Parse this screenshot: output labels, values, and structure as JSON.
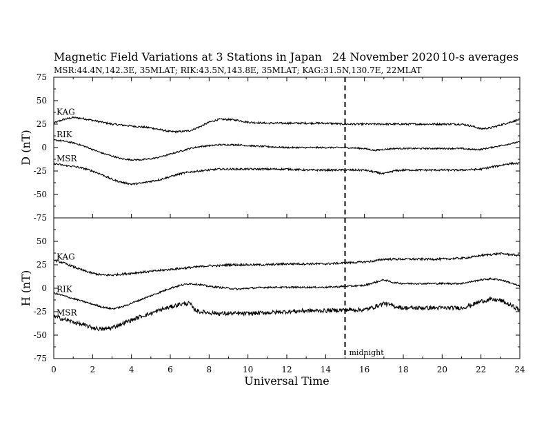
{
  "title": {
    "main": "Magnetic Field Variations at 3 Stations in Japan",
    "date": "24 November 2020",
    "averaging": "10-s averages",
    "stations_line": "MSR:44.4N,142.3E, 35MLAT;  RIK:43.5N,143.8E, 35MLAT;  KAG:31.5N,130.7E, 22MLAT"
  },
  "x_axis": {
    "label": "Universal Time",
    "range": [
      0,
      24
    ],
    "ticks": [
      "0",
      "2",
      "4",
      "6",
      "8",
      "10",
      "12",
      "14",
      "16",
      "18",
      "20",
      "22",
      "24"
    ]
  },
  "midnight_marker": {
    "x": 15,
    "label": "midnight"
  },
  "panels": {
    "D": {
      "ylabel": "D (nT)",
      "range": [
        -75,
        75
      ],
      "ticks": [
        "75",
        "50",
        "25",
        "0",
        "-25",
        "-50",
        "-75"
      ]
    },
    "H": {
      "ylabel": "H (nT)",
      "range": [
        -75,
        75
      ],
      "ticks": [
        "50",
        "25",
        "0",
        "-25",
        "-50",
        "-75"
      ]
    }
  },
  "chart_data": [
    {
      "type": "line",
      "panel": "D",
      "xlabel": "Universal Time",
      "ylabel": "D (nT)",
      "xlim": [
        0,
        24
      ],
      "ylim": [
        -75,
        75
      ],
      "grid": false,
      "series": [
        {
          "name": "KAG",
          "x": [
            0,
            0.5,
            1,
            1.5,
            2,
            2.5,
            3,
            3.5,
            4,
            4.5,
            5,
            5.5,
            6,
            6.5,
            7,
            7.5,
            8,
            8.5,
            9,
            9.5,
            10,
            11,
            12,
            13,
            14,
            15,
            16,
            17,
            18,
            19,
            20,
            21,
            21.5,
            22,
            22.5,
            23,
            23.5,
            24
          ],
          "y": [
            26,
            30,
            32,
            31,
            29,
            27,
            25,
            24,
            23,
            22,
            21,
            19,
            17,
            17,
            18,
            22,
            27,
            30,
            30,
            29,
            27,
            26,
            26,
            26,
            26,
            25,
            25,
            25,
            25,
            25,
            25,
            25,
            23,
            20,
            21,
            24,
            27,
            30
          ],
          "noise": 1.0
        },
        {
          "name": "RIK",
          "x": [
            0,
            0.5,
            1,
            1.5,
            2,
            2.5,
            3,
            3.5,
            4,
            4.5,
            5,
            5.5,
            6,
            6.5,
            7,
            7.5,
            8,
            8.5,
            9,
            9.5,
            10,
            11,
            12,
            13,
            14,
            15,
            16,
            16.5,
            17,
            17.5,
            18,
            19,
            20,
            21,
            21.5,
            22,
            22.5,
            23,
            23.5,
            24
          ],
          "y": [
            8,
            7,
            5,
            2,
            -2,
            -6,
            -9,
            -12,
            -13,
            -13,
            -12,
            -10,
            -7,
            -4,
            -1,
            1,
            2,
            3,
            3,
            3,
            2,
            1,
            0,
            0,
            0,
            0,
            -1,
            -3,
            -2,
            -1,
            -1,
            -1,
            -1,
            -1,
            -2,
            -2,
            0,
            2,
            4,
            6
          ],
          "noise": 0.8
        },
        {
          "name": "MSR",
          "x": [
            0,
            0.5,
            1,
            1.5,
            2,
            2.5,
            3,
            3.5,
            4,
            4.5,
            5,
            5.5,
            6,
            6.5,
            7,
            7.5,
            8,
            8.5,
            9,
            9.5,
            10,
            11,
            12,
            13,
            14,
            15,
            16,
            16.5,
            17,
            17.5,
            18,
            19,
            20,
            21,
            22,
            22.5,
            23,
            23.5,
            24
          ],
          "y": [
            -17,
            -19,
            -20,
            -22,
            -25,
            -29,
            -34,
            -37,
            -39,
            -38,
            -36,
            -34,
            -31,
            -28,
            -26,
            -25,
            -24,
            -23,
            -23,
            -23,
            -23,
            -23,
            -23,
            -24,
            -24,
            -24,
            -24,
            -26,
            -28,
            -25,
            -24,
            -24,
            -24,
            -24,
            -23,
            -21,
            -19,
            -17,
            -17
          ],
          "noise": 1.0
        }
      ]
    },
    {
      "type": "line",
      "panel": "H",
      "xlabel": "Universal Time",
      "ylabel": "H (nT)",
      "xlim": [
        0,
        24
      ],
      "ylim": [
        -75,
        75
      ],
      "grid": false,
      "series": [
        {
          "name": "KAG",
          "x": [
            0,
            0.5,
            1,
            1.5,
            2,
            2.5,
            3,
            3.5,
            4,
            4.5,
            5,
            5.5,
            6,
            6.5,
            7,
            7.5,
            8,
            8.5,
            9,
            10,
            11,
            12,
            13,
            14,
            15,
            16,
            16.5,
            17,
            17.5,
            18,
            19,
            20,
            21,
            21.5,
            22,
            22.5,
            23,
            23.5,
            24
          ],
          "y": [
            30,
            27,
            23,
            19,
            16,
            14,
            14,
            15,
            16,
            17,
            18,
            19,
            20,
            21,
            22,
            23,
            24,
            24,
            25,
            25,
            25,
            26,
            26,
            26,
            27,
            28,
            29,
            31,
            31,
            31,
            31,
            31,
            32,
            33,
            35,
            36,
            37,
            36,
            35
          ],
          "noise": 1.1
        },
        {
          "name": "RIK",
          "x": [
            0,
            0.5,
            1,
            1.5,
            2,
            2.5,
            3,
            3.5,
            4,
            4.5,
            5,
            5.5,
            6,
            6.5,
            7,
            7.5,
            8,
            8.5,
            9,
            9.5,
            10,
            11,
            12,
            13,
            14,
            15,
            16,
            16.5,
            17,
            17.5,
            18,
            19,
            20,
            21,
            21.5,
            22,
            22.5,
            23,
            23.5,
            24
          ],
          "y": [
            -5,
            -8,
            -11,
            -14,
            -17,
            -20,
            -22,
            -20,
            -16,
            -12,
            -8,
            -4,
            0,
            3,
            5,
            4,
            2,
            1,
            0,
            -1,
            0,
            1,
            1,
            1,
            1,
            2,
            3,
            6,
            9,
            6,
            5,
            5,
            5,
            5,
            7,
            9,
            10,
            9,
            6,
            2
          ],
          "noise": 0.9
        },
        {
          "name": "MSR",
          "x": [
            0,
            0.5,
            1,
            1.5,
            2,
            2.5,
            3,
            3.5,
            4,
            4.5,
            5,
            5.5,
            6,
            6.5,
            7,
            7.2,
            7.5,
            8,
            8.5,
            9,
            9.5,
            10,
            11,
            12,
            13,
            14,
            15,
            16,
            16.5,
            17,
            17.5,
            18,
            19,
            20,
            21,
            21.5,
            22,
            22.5,
            23,
            23.5,
            24
          ],
          "y": [
            -30,
            -33,
            -36,
            -39,
            -42,
            -44,
            -42,
            -38,
            -34,
            -30,
            -27,
            -23,
            -20,
            -17,
            -16,
            -22,
            -25,
            -26,
            -27,
            -27,
            -27,
            -27,
            -26,
            -25,
            -24,
            -24,
            -23,
            -23,
            -20,
            -16,
            -19,
            -21,
            -21,
            -21,
            -21,
            -18,
            -14,
            -12,
            -13,
            -18,
            -23
          ],
          "noise": 2.2
        }
      ]
    }
  ]
}
